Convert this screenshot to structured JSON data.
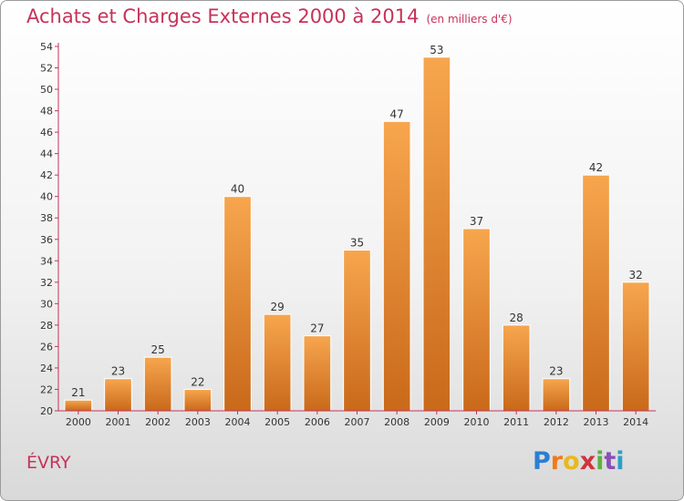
{
  "title": "Achats et Charges Externes 2000 à 2014",
  "subtitle": "(en milliers d'€)",
  "city": "ÉVRY",
  "logo": [
    "P",
    "r",
    "o",
    "x",
    "i",
    "t",
    "i"
  ],
  "colors": {
    "title": "#c8325a",
    "bar_light": "#f7a64e",
    "bar_dark": "#c9691a",
    "axis": "#c8325a"
  },
  "chart_data": {
    "type": "bar",
    "title": "Achats et Charges Externes 2000 à 2014",
    "subtitle": "(en milliers d'€)",
    "categories": [
      "2000",
      "2001",
      "2002",
      "2003",
      "2004",
      "2005",
      "2006",
      "2007",
      "2008",
      "2009",
      "2010",
      "2011",
      "2012",
      "2013",
      "2014"
    ],
    "values": [
      21,
      23,
      25,
      22,
      40,
      29,
      27,
      35,
      47,
      53,
      37,
      28,
      23,
      42,
      32
    ],
    "ylim": [
      20,
      54
    ],
    "yticks": [
      20,
      22,
      24,
      26,
      28,
      30,
      32,
      34,
      36,
      38,
      40,
      42,
      44,
      46,
      48,
      50,
      52,
      54
    ],
    "grid": false,
    "legend": "none"
  }
}
